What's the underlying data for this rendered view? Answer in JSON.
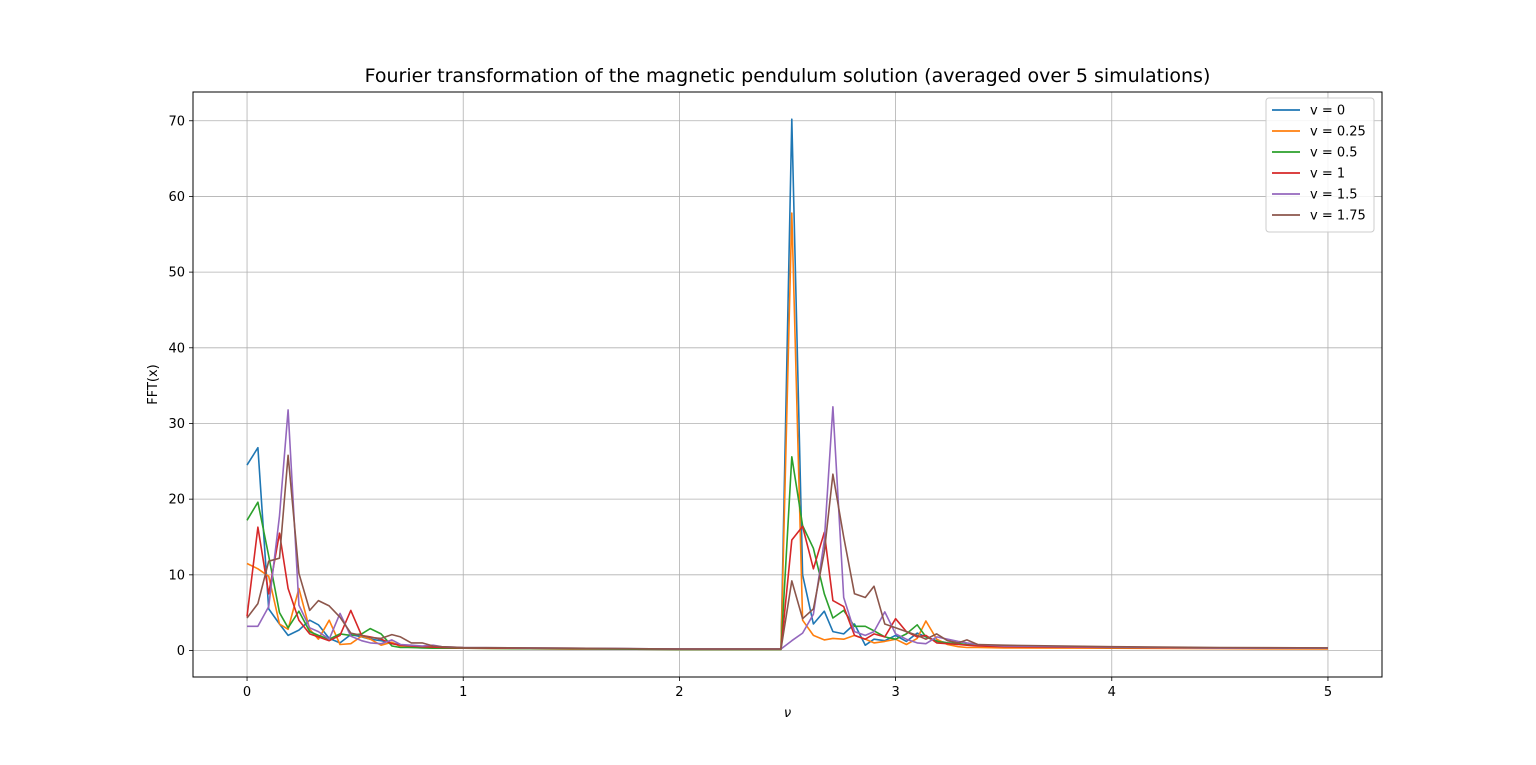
{
  "chart_data": {
    "type": "line",
    "title": "Fourier transformation of the magnetic pendulum solution (averaged over 5 simulations)",
    "xlabel": "ν",
    "ylabel": "FFT(x)",
    "xlim": [
      -0.25,
      5.25
    ],
    "ylim": [
      -3.5,
      73.8
    ],
    "xticks": [
      0,
      1,
      2,
      3,
      4,
      5
    ],
    "yticks": [
      0,
      10,
      20,
      30,
      40,
      50,
      60,
      70
    ],
    "grid": true,
    "legend_position": "top-right",
    "series": [
      {
        "name": "v = 0",
        "color": "#1f77b4",
        "points": [
          [
            0,
            24.5
          ],
          [
            0.05,
            26.8
          ],
          [
            0.1,
            5.5
          ],
          [
            0.15,
            3.5
          ],
          [
            0.19,
            2.0
          ],
          [
            0.24,
            2.7
          ],
          [
            0.29,
            4.0
          ],
          [
            0.33,
            3.4
          ],
          [
            0.38,
            1.6
          ],
          [
            0.43,
            1.0
          ],
          [
            0.48,
            2.1
          ],
          [
            0.53,
            1.8
          ],
          [
            0.57,
            1.5
          ],
          [
            0.62,
            1.3
          ],
          [
            0.67,
            1.0
          ],
          [
            0.71,
            0.7
          ],
          [
            0.76,
            0.6
          ],
          [
            0.81,
            0.5
          ],
          [
            0.86,
            0.45
          ],
          [
            0.9,
            0.4
          ],
          [
            1.0,
            0.35
          ],
          [
            1.5,
            0.25
          ],
          [
            2.0,
            0.2
          ],
          [
            2.47,
            0.2
          ],
          [
            2.52,
            70.2
          ],
          [
            2.57,
            10.0
          ],
          [
            2.62,
            3.5
          ],
          [
            2.67,
            5.2
          ],
          [
            2.71,
            2.5
          ],
          [
            2.76,
            2.2
          ],
          [
            2.81,
            3.5
          ],
          [
            2.86,
            0.7
          ],
          [
            2.9,
            1.5
          ],
          [
            2.95,
            1.3
          ],
          [
            3.0,
            2.0
          ],
          [
            3.05,
            1.2
          ],
          [
            3.1,
            2.3
          ],
          [
            3.14,
            1.8
          ],
          [
            3.19,
            1.3
          ],
          [
            3.24,
            1.0
          ],
          [
            3.29,
            0.9
          ],
          [
            3.33,
            0.8
          ],
          [
            3.38,
            0.7
          ],
          [
            3.5,
            0.6
          ],
          [
            4.0,
            0.4
          ],
          [
            4.5,
            0.35
          ],
          [
            5.0,
            0.3
          ]
        ]
      },
      {
        "name": "v = 0.25",
        "color": "#ff7f0e",
        "points": [
          [
            0,
            11.5
          ],
          [
            0.05,
            10.8
          ],
          [
            0.1,
            9.8
          ],
          [
            0.15,
            3.5
          ],
          [
            0.19,
            2.8
          ],
          [
            0.24,
            8.2
          ],
          [
            0.29,
            2.8
          ],
          [
            0.33,
            1.5
          ],
          [
            0.38,
            4.0
          ],
          [
            0.43,
            0.8
          ],
          [
            0.48,
            0.9
          ],
          [
            0.53,
            1.9
          ],
          [
            0.57,
            1.5
          ],
          [
            0.62,
            0.7
          ],
          [
            0.67,
            1.1
          ],
          [
            0.71,
            0.5
          ],
          [
            0.76,
            0.4
          ],
          [
            0.81,
            0.4
          ],
          [
            0.86,
            0.35
          ],
          [
            0.9,
            0.3
          ],
          [
            1.0,
            0.3
          ],
          [
            1.5,
            0.2
          ],
          [
            2.0,
            0.15
          ],
          [
            2.47,
            0.15
          ],
          [
            2.52,
            57.8
          ],
          [
            2.57,
            4.0
          ],
          [
            2.62,
            2.0
          ],
          [
            2.67,
            1.4
          ],
          [
            2.71,
            1.6
          ],
          [
            2.76,
            1.5
          ],
          [
            2.81,
            2.0
          ],
          [
            2.86,
            1.5
          ],
          [
            2.9,
            1.0
          ],
          [
            2.95,
            1.2
          ],
          [
            3.0,
            1.5
          ],
          [
            3.05,
            0.8
          ],
          [
            3.1,
            1.6
          ],
          [
            3.14,
            3.9
          ],
          [
            3.19,
            1.5
          ],
          [
            3.24,
            0.8
          ],
          [
            3.29,
            0.5
          ],
          [
            3.33,
            0.4
          ],
          [
            3.38,
            0.4
          ],
          [
            3.5,
            0.35
          ],
          [
            4.0,
            0.3
          ],
          [
            4.5,
            0.25
          ],
          [
            5.0,
            0.2
          ]
        ]
      },
      {
        "name": "v = 0.5",
        "color": "#2ca02c",
        "points": [
          [
            0,
            17.2
          ],
          [
            0.05,
            19.6
          ],
          [
            0.1,
            12.5
          ],
          [
            0.15,
            5.0
          ],
          [
            0.19,
            3.0
          ],
          [
            0.24,
            5.2
          ],
          [
            0.29,
            2.5
          ],
          [
            0.33,
            2.0
          ],
          [
            0.38,
            1.5
          ],
          [
            0.43,
            2.2
          ],
          [
            0.48,
            2.0
          ],
          [
            0.53,
            2.2
          ],
          [
            0.57,
            2.9
          ],
          [
            0.62,
            2.2
          ],
          [
            0.67,
            0.6
          ],
          [
            0.71,
            0.4
          ],
          [
            0.76,
            0.4
          ],
          [
            0.81,
            0.35
          ],
          [
            0.86,
            0.3
          ],
          [
            0.9,
            0.3
          ],
          [
            1.0,
            0.3
          ],
          [
            1.5,
            0.2
          ],
          [
            2.0,
            0.15
          ],
          [
            2.47,
            0.15
          ],
          [
            2.52,
            25.6
          ],
          [
            2.57,
            16.5
          ],
          [
            2.62,
            13.5
          ],
          [
            2.67,
            7.5
          ],
          [
            2.71,
            4.3
          ],
          [
            2.76,
            5.3
          ],
          [
            2.81,
            3.2
          ],
          [
            2.86,
            3.2
          ],
          [
            2.9,
            2.6
          ],
          [
            2.95,
            1.8
          ],
          [
            3.0,
            1.5
          ],
          [
            3.05,
            2.2
          ],
          [
            3.1,
            3.4
          ],
          [
            3.14,
            1.8
          ],
          [
            3.19,
            1.2
          ],
          [
            3.24,
            1.0
          ],
          [
            3.29,
            0.9
          ],
          [
            3.33,
            0.8
          ],
          [
            3.38,
            0.7
          ],
          [
            3.5,
            0.55
          ],
          [
            4.0,
            0.4
          ],
          [
            4.5,
            0.35
          ],
          [
            5.0,
            0.3
          ]
        ]
      },
      {
        "name": "v = 1",
        "color": "#d62728",
        "points": [
          [
            0,
            4.5
          ],
          [
            0.05,
            16.3
          ],
          [
            0.1,
            7.5
          ],
          [
            0.15,
            15.5
          ],
          [
            0.19,
            8.2
          ],
          [
            0.24,
            4.0
          ],
          [
            0.29,
            2.2
          ],
          [
            0.33,
            1.8
          ],
          [
            0.38,
            1.3
          ],
          [
            0.43,
            2.0
          ],
          [
            0.48,
            5.3
          ],
          [
            0.53,
            2.0
          ],
          [
            0.57,
            1.8
          ],
          [
            0.62,
            1.5
          ],
          [
            0.67,
            0.9
          ],
          [
            0.71,
            0.7
          ],
          [
            0.76,
            0.6
          ],
          [
            0.81,
            0.5
          ],
          [
            0.86,
            0.45
          ],
          [
            0.9,
            0.4
          ],
          [
            1.0,
            0.35
          ],
          [
            1.5,
            0.25
          ],
          [
            2.0,
            0.2
          ],
          [
            2.47,
            0.2
          ],
          [
            2.52,
            14.6
          ],
          [
            2.57,
            16.4
          ],
          [
            2.62,
            10.8
          ],
          [
            2.67,
            15.6
          ],
          [
            2.71,
            6.6
          ],
          [
            2.76,
            5.8
          ],
          [
            2.81,
            2.0
          ],
          [
            2.86,
            1.5
          ],
          [
            2.9,
            2.2
          ],
          [
            2.95,
            1.8
          ],
          [
            3.0,
            4.2
          ],
          [
            3.05,
            2.5
          ],
          [
            3.1,
            1.8
          ],
          [
            3.14,
            2.0
          ],
          [
            3.19,
            1.0
          ],
          [
            3.24,
            0.9
          ],
          [
            3.29,
            0.8
          ],
          [
            3.33,
            0.7
          ],
          [
            3.38,
            0.6
          ],
          [
            3.5,
            0.5
          ],
          [
            4.0,
            0.4
          ],
          [
            4.5,
            0.35
          ],
          [
            5.0,
            0.3
          ]
        ]
      },
      {
        "name": "v = 1.5",
        "color": "#9467bd",
        "points": [
          [
            0,
            3.2
          ],
          [
            0.05,
            3.2
          ],
          [
            0.1,
            5.8
          ],
          [
            0.15,
            17.8
          ],
          [
            0.19,
            31.8
          ],
          [
            0.24,
            6.0
          ],
          [
            0.29,
            3.0
          ],
          [
            0.33,
            2.5
          ],
          [
            0.38,
            1.5
          ],
          [
            0.43,
            4.9
          ],
          [
            0.48,
            1.9
          ],
          [
            0.53,
            1.3
          ],
          [
            0.57,
            1.0
          ],
          [
            0.62,
            0.9
          ],
          [
            0.67,
            1.4
          ],
          [
            0.71,
            0.8
          ],
          [
            0.76,
            0.7
          ],
          [
            0.81,
            0.6
          ],
          [
            0.86,
            0.7
          ],
          [
            0.9,
            0.5
          ],
          [
            1.0,
            0.4
          ],
          [
            1.5,
            0.3
          ],
          [
            2.0,
            0.2
          ],
          [
            2.47,
            0.2
          ],
          [
            2.52,
            1.3
          ],
          [
            2.57,
            2.3
          ],
          [
            2.62,
            4.8
          ],
          [
            2.67,
            14.5
          ],
          [
            2.71,
            32.2
          ],
          [
            2.76,
            7.0
          ],
          [
            2.81,
            2.5
          ],
          [
            2.86,
            2.0
          ],
          [
            2.9,
            2.5
          ],
          [
            2.95,
            5.1
          ],
          [
            3.0,
            2.2
          ],
          [
            3.05,
            1.5
          ],
          [
            3.1,
            1.0
          ],
          [
            3.14,
            0.9
          ],
          [
            3.19,
            1.8
          ],
          [
            3.24,
            1.5
          ],
          [
            3.29,
            1.2
          ],
          [
            3.33,
            1.0
          ],
          [
            3.38,
            0.8
          ],
          [
            3.5,
            0.6
          ],
          [
            4.0,
            0.45
          ],
          [
            4.5,
            0.35
          ],
          [
            5.0,
            0.3
          ]
        ]
      },
      {
        "name": "v = 1.75",
        "color": "#8c564b",
        "points": [
          [
            0,
            4.3
          ],
          [
            0.05,
            6.2
          ],
          [
            0.1,
            11.8
          ],
          [
            0.15,
            12.2
          ],
          [
            0.19,
            25.8
          ],
          [
            0.24,
            10.2
          ],
          [
            0.29,
            5.3
          ],
          [
            0.33,
            6.6
          ],
          [
            0.38,
            5.9
          ],
          [
            0.43,
            4.4
          ],
          [
            0.48,
            2.3
          ],
          [
            0.53,
            2.0
          ],
          [
            0.57,
            1.7
          ],
          [
            0.62,
            1.6
          ],
          [
            0.67,
            2.1
          ],
          [
            0.71,
            1.8
          ],
          [
            0.76,
            1.0
          ],
          [
            0.81,
            1.0
          ],
          [
            0.86,
            0.6
          ],
          [
            0.9,
            0.5
          ],
          [
            1.0,
            0.4
          ],
          [
            1.5,
            0.3
          ],
          [
            2.0,
            0.2
          ],
          [
            2.47,
            0.2
          ],
          [
            2.52,
            9.2
          ],
          [
            2.57,
            4.2
          ],
          [
            2.62,
            5.5
          ],
          [
            2.67,
            13.0
          ],
          [
            2.71,
            23.3
          ],
          [
            2.76,
            15.0
          ],
          [
            2.81,
            7.5
          ],
          [
            2.86,
            7.0
          ],
          [
            2.9,
            8.5
          ],
          [
            2.95,
            3.5
          ],
          [
            3.0,
            3.0
          ],
          [
            3.05,
            2.5
          ],
          [
            3.1,
            2.0
          ],
          [
            3.14,
            1.5
          ],
          [
            3.19,
            2.2
          ],
          [
            3.24,
            1.3
          ],
          [
            3.29,
            1.0
          ],
          [
            3.33,
            1.4
          ],
          [
            3.38,
            0.8
          ],
          [
            3.5,
            0.7
          ],
          [
            4.0,
            0.5
          ],
          [
            4.5,
            0.4
          ],
          [
            5.0,
            0.35
          ]
        ]
      }
    ]
  }
}
